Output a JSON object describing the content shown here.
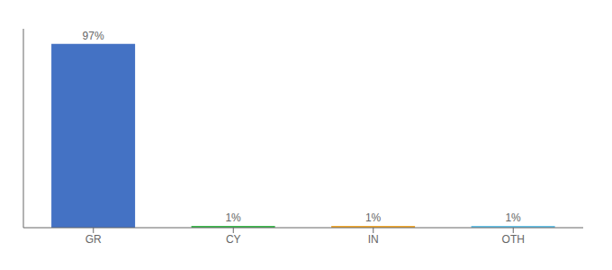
{
  "chart_data": {
    "type": "bar",
    "categories": [
      "GR",
      "CY",
      "IN",
      "OTH"
    ],
    "values": [
      97,
      1,
      1,
      1
    ],
    "colors": [
      "#4472c4",
      "#3dba4e",
      "#f0a830",
      "#66c2e8"
    ],
    "value_labels": [
      "97%",
      "1%",
      "1%",
      "1%"
    ],
    "ylim": [
      0,
      105
    ],
    "data_labels": true,
    "tick_labels": "x",
    "grid": false
  }
}
